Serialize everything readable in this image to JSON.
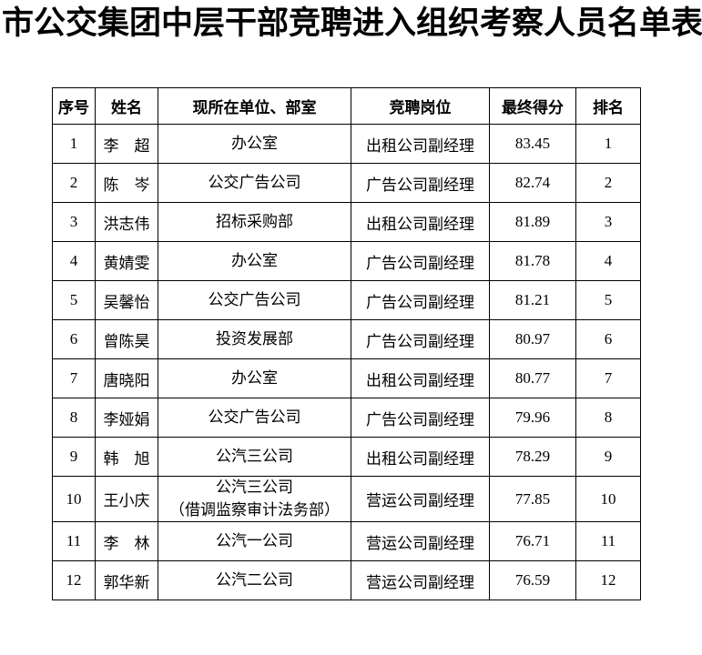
{
  "title": "市公交集团中层干部竞聘进入组织考察人员名单表",
  "table": {
    "columns": [
      "序号",
      "姓名",
      "现所在单位、部室",
      "竞聘岗位",
      "最终得分",
      "排名"
    ],
    "rows": [
      {
        "no": "1",
        "name": "李　超",
        "unit": "办公室",
        "position": "出租公司副经理",
        "score": "83.45",
        "rank": "1"
      },
      {
        "no": "2",
        "name": "陈　岑",
        "unit": "公交广告公司",
        "position": "广告公司副经理",
        "score": "82.74",
        "rank": "2"
      },
      {
        "no": "3",
        "name": "洪志伟",
        "unit": "招标采购部",
        "position": "出租公司副经理",
        "score": "81.89",
        "rank": "3"
      },
      {
        "no": "4",
        "name": "黄婧雯",
        "unit": "办公室",
        "position": "广告公司副经理",
        "score": "81.78",
        "rank": "4"
      },
      {
        "no": "5",
        "name": "吴馨怡",
        "unit": "公交广告公司",
        "position": "广告公司副经理",
        "score": "81.21",
        "rank": "5"
      },
      {
        "no": "6",
        "name": "曾陈昊",
        "unit": "投资发展部",
        "position": "广告公司副经理",
        "score": "80.97",
        "rank": "6"
      },
      {
        "no": "7",
        "name": "唐晓阳",
        "unit": "办公室",
        "position": "出租公司副经理",
        "score": "80.77",
        "rank": "7"
      },
      {
        "no": "8",
        "name": "李娅娟",
        "unit": "公交广告公司",
        "position": "广告公司副经理",
        "score": "79.96",
        "rank": "8"
      },
      {
        "no": "9",
        "name": "韩　旭",
        "unit": "公汽三公司",
        "position": "出租公司副经理",
        "score": "78.29",
        "rank": "9"
      },
      {
        "no": "10",
        "name": "王小庆",
        "unit": "公汽三公司\n（借调监察审计法务部）",
        "position": "营运公司副经理",
        "score": "77.85",
        "rank": "10"
      },
      {
        "no": "11",
        "name": "李　林",
        "unit": "公汽一公司",
        "position": "营运公司副经理",
        "score": "76.71",
        "rank": "11"
      },
      {
        "no": "12",
        "name": "郭华新",
        "unit": "公汽二公司",
        "position": "营运公司副经理",
        "score": "76.59",
        "rank": "12"
      }
    ]
  }
}
